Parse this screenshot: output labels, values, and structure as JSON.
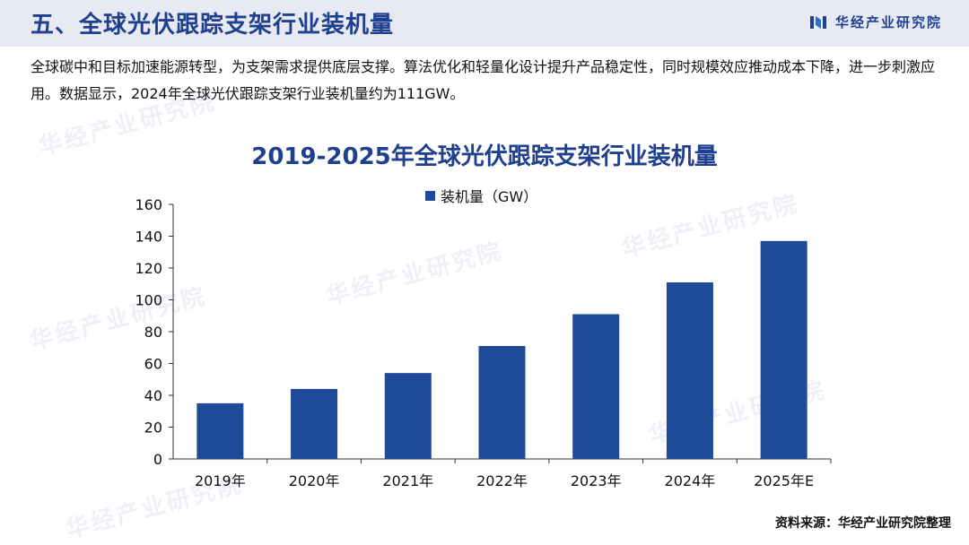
{
  "header": {
    "title": "五、全球光伏跟踪支架行业装机量",
    "brand": "华经产业研究院"
  },
  "description": "全球碳中和目标加速能源转型，为支架需求提供底层支撑。算法优化和轻量化设计提升产品稳定性，同时规模效应推动成本下降，进一步刺激应用。数据显示，2024年全球光伏跟踪支架行业装机量约为111GW。",
  "watermark": "华经产业研究院",
  "source": "资料来源：华经产业研究院整理",
  "colors": {
    "bar": "#1f4a9a",
    "title": "#1f3f8f",
    "header_bg": "#e7eaf2"
  },
  "chart_data": {
    "type": "bar",
    "title": "2019-2025年全球光伏跟踪支架行业装机量",
    "categories": [
      "2019年",
      "2020年",
      "2021年",
      "2022年",
      "2023年",
      "2024年",
      "2025年E"
    ],
    "series": [
      {
        "name": "装机量（GW）",
        "values": [
          35,
          44,
          54,
          71,
          91,
          111,
          137
        ]
      }
    ],
    "ylim": [
      0,
      160
    ],
    "yticks": [
      0,
      20,
      40,
      60,
      80,
      100,
      120,
      140,
      160
    ],
    "xlabel": "",
    "ylabel": "",
    "grid": false,
    "legend": "top"
  }
}
